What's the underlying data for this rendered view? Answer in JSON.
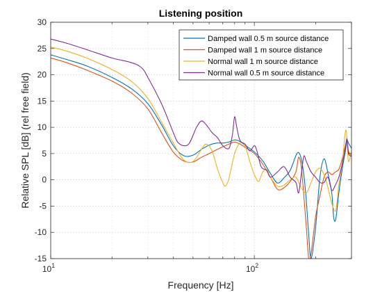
{
  "chart_data": {
    "type": "line",
    "title": "Listening position",
    "xlabel": "Frequency [Hz]",
    "ylabel": "Relative SPL [dB] (rel free field)",
    "xscale": "log",
    "xlim": [
      10,
      300
    ],
    "ylim": [
      -15,
      30
    ],
    "yticks": [
      -15,
      -10,
      -5,
      0,
      5,
      10,
      15,
      20,
      25,
      30
    ],
    "ytick_labels": [
      "-15",
      "-10",
      "-5",
      "0",
      "5",
      "10",
      "15",
      "20",
      "25",
      "30"
    ],
    "xtick_major_labels": [
      {
        "value": 10,
        "base": "10",
        "exp": "1"
      },
      {
        "value": 100,
        "base": "10",
        "exp": "2"
      }
    ],
    "grid": true,
    "legend_position": "top-right",
    "series": [
      {
        "name": "Damped wall 0.5 m source distance",
        "color": "#0072BD",
        "points": [
          [
            10,
            23.8
          ],
          [
            12,
            22.9
          ],
          [
            15,
            21.7
          ],
          [
            20,
            19.5
          ],
          [
            25,
            17.3
          ],
          [
            30,
            14.5
          ],
          [
            35,
            10.5
          ],
          [
            40,
            6.5
          ],
          [
            45,
            4.6
          ],
          [
            50,
            4.7
          ],
          [
            55,
            5.8
          ],
          [
            60,
            6.6
          ],
          [
            65,
            7.0
          ],
          [
            70,
            7.0
          ],
          [
            75,
            7.2
          ],
          [
            80,
            7.6
          ],
          [
            85,
            7.3
          ],
          [
            90,
            6.6
          ],
          [
            100,
            5.3
          ],
          [
            110,
            3.6
          ],
          [
            120,
            1.2
          ],
          [
            130,
            -0.6
          ],
          [
            140,
            0.4
          ],
          [
            150,
            1.8
          ],
          [
            160,
            4.6
          ],
          [
            165,
            5.2
          ],
          [
            170,
            4.0
          ],
          [
            175,
            1.0
          ],
          [
            180,
            -4.0
          ],
          [
            185,
            -10.5
          ],
          [
            190,
            -15.0
          ],
          [
            200,
            -9.0
          ],
          [
            210,
            0.5
          ],
          [
            220,
            4.0
          ],
          [
            230,
            1.2
          ],
          [
            240,
            -2.5
          ],
          [
            245,
            -7.0
          ],
          [
            250,
            -7.8
          ],
          [
            255,
            -5.5
          ],
          [
            260,
            -2.5
          ],
          [
            270,
            2.0
          ],
          [
            280,
            5.5
          ],
          [
            285,
            7.5
          ],
          [
            290,
            7.0
          ],
          [
            300,
            6.0
          ]
        ]
      },
      {
        "name": "Damped wall 1 m source distance",
        "color": "#D95319",
        "points": [
          [
            10,
            23.2
          ],
          [
            12,
            22.3
          ],
          [
            15,
            20.9
          ],
          [
            20,
            18.8
          ],
          [
            25,
            16.5
          ],
          [
            30,
            13.5
          ],
          [
            35,
            9.0
          ],
          [
            40,
            5.3
          ],
          [
            45,
            3.6
          ],
          [
            50,
            3.4
          ],
          [
            55,
            4.3
          ],
          [
            60,
            5.0
          ],
          [
            65,
            5.7
          ],
          [
            70,
            6.3
          ],
          [
            75,
            6.8
          ],
          [
            80,
            7.2
          ],
          [
            85,
            6.8
          ],
          [
            90,
            6.2
          ],
          [
            100,
            5.0
          ],
          [
            110,
            3.0
          ],
          [
            120,
            0.5
          ],
          [
            130,
            -1.8
          ],
          [
            140,
            -1.5
          ],
          [
            150,
            -0.3
          ],
          [
            160,
            1.5
          ],
          [
            165,
            4.3
          ],
          [
            170,
            2.5
          ],
          [
            175,
            -3.0
          ],
          [
            180,
            -9.0
          ],
          [
            185,
            -15.0
          ],
          [
            190,
            -14.0
          ],
          [
            200,
            -7.0
          ],
          [
            210,
            -3.0
          ],
          [
            220,
            0.5
          ],
          [
            230,
            1.5
          ],
          [
            240,
            1.0
          ],
          [
            250,
            1.5
          ],
          [
            260,
            2.0
          ],
          [
            270,
            4.0
          ],
          [
            280,
            6.5
          ],
          [
            285,
            7.5
          ],
          [
            290,
            5.5
          ],
          [
            300,
            4.5
          ]
        ]
      },
      {
        "name": "Normal wall 1 m source distance",
        "color": "#EDB120",
        "points": [
          [
            10,
            25.3
          ],
          [
            12,
            24.5
          ],
          [
            15,
            23.2
          ],
          [
            20,
            21.0
          ],
          [
            25,
            18.7
          ],
          [
            30,
            15.5
          ],
          [
            35,
            11.0
          ],
          [
            40,
            7.0
          ],
          [
            45,
            3.8
          ],
          [
            50,
            3.5
          ],
          [
            55,
            5.8
          ],
          [
            58,
            6.8
          ],
          [
            62,
            5.5
          ],
          [
            66,
            2.0
          ],
          [
            70,
            -0.5
          ],
          [
            72,
            -1.2
          ],
          [
            75,
            0.2
          ],
          [
            80,
            5.0
          ],
          [
            85,
            7.0
          ],
          [
            90,
            6.5
          ],
          [
            95,
            3.5
          ],
          [
            100,
            1.0
          ],
          [
            105,
            -0.3
          ],
          [
            110,
            1.5
          ],
          [
            115,
            2.0
          ],
          [
            120,
            0.5
          ],
          [
            130,
            -1.2
          ],
          [
            140,
            -1.0
          ],
          [
            150,
            0.0
          ],
          [
            160,
            0.5
          ],
          [
            170,
            -1.5
          ],
          [
            180,
            -2.5
          ],
          [
            190,
            -0.5
          ],
          [
            200,
            1.5
          ],
          [
            210,
            2.2
          ],
          [
            220,
            1.0
          ],
          [
            230,
            -1.5
          ],
          [
            240,
            -4.5
          ],
          [
            250,
            -6.0
          ],
          [
            255,
            -4.0
          ],
          [
            260,
            -1.0
          ],
          [
            270,
            3.0
          ],
          [
            280,
            9.2
          ],
          [
            285,
            8.0
          ],
          [
            290,
            3.5
          ],
          [
            300,
            5.5
          ]
        ]
      },
      {
        "name": "Normal wall 0.5 m source distance",
        "color": "#7E2F8E",
        "points": [
          [
            10,
            26.8
          ],
          [
            12,
            26.0
          ],
          [
            15,
            24.8
          ],
          [
            20,
            23.2
          ],
          [
            25,
            22.3
          ],
          [
            28,
            21.3
          ],
          [
            30,
            19.5
          ],
          [
            35,
            14.5
          ],
          [
            40,
            9.0
          ],
          [
            42,
            7.2
          ],
          [
            45,
            6.5
          ],
          [
            48,
            7.0
          ],
          [
            52,
            10.0
          ],
          [
            55,
            11.2
          ],
          [
            58,
            10.5
          ],
          [
            62,
            9.0
          ],
          [
            66,
            8.0
          ],
          [
            70,
            6.5
          ],
          [
            75,
            6.0
          ],
          [
            78,
            8.5
          ],
          [
            80,
            12.0
          ],
          [
            82,
            10.0
          ],
          [
            85,
            7.5
          ],
          [
            90,
            6.8
          ],
          [
            95,
            5.5
          ],
          [
            100,
            6.5
          ],
          [
            103,
            5.5
          ],
          [
            108,
            2.5
          ],
          [
            115,
            1.8
          ],
          [
            120,
            0.5
          ],
          [
            130,
            1.5
          ],
          [
            140,
            2.5
          ],
          [
            150,
            0.5
          ],
          [
            160,
            -0.5
          ],
          [
            165,
            -2.5
          ],
          [
            170,
            1.0
          ],
          [
            175,
            4.5
          ],
          [
            180,
            3.5
          ],
          [
            190,
            1.5
          ],
          [
            200,
            0.5
          ],
          [
            210,
            -0.5
          ],
          [
            220,
            -0.5
          ],
          [
            230,
            0.5
          ],
          [
            240,
            -2.0
          ],
          [
            250,
            -1.0
          ],
          [
            260,
            0.5
          ],
          [
            270,
            3.0
          ],
          [
            280,
            6.0
          ],
          [
            285,
            7.8
          ],
          [
            290,
            5.0
          ],
          [
            300,
            4.5
          ]
        ]
      }
    ]
  }
}
